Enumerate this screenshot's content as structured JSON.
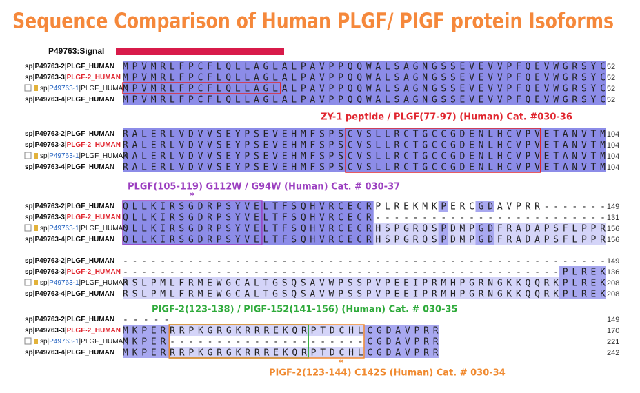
{
  "title": "Sequence Comparison of Human PLGF/ PIGF protein Isoforms",
  "title_color": "#f5883b",
  "signal": {
    "label": "P49763:Signal",
    "color": "#d81b4a"
  },
  "blocks": [
    {
      "rows": [
        {
          "name": [
            "sp|P49763-2|PLGF_HUMAN"
          ],
          "sequence": "MPVMRLFPCFLQLLAGLALPAVPPQQWALSAGNGSSEVEVVPFQEVWGRSYC",
          "end": 52
        },
        {
          "name": [
            "sp|P49763-3|",
            "PLGF-2_HUMAN"
          ],
          "sequence": "MPVMRLFPCFLQLLAGLALPAVPPQQWALSAGNGSSEVEVVPFQEVWGRSYC",
          "end": 52
        },
        {
          "name": [
            "sp|",
            "P49763-1",
            "|PLGF_HUMAN"
          ],
          "sequence": "MPVMRLFPCFLQLLAGLALPAVPPQQWALSAGNGSSEVEVVPFQEVWGRSYC",
          "end": 52
        },
        {
          "name": [
            "sp|P49763-4|PLGF_HUMAN"
          ],
          "sequence": "MPVMRLFPCFLQLLAGLALPAVPPQQWALSAGNGSSEVEVVPFQEVWGRSYC",
          "end": 52
        }
      ]
    },
    {
      "rows": [
        {
          "name": [
            "sp|P49763-2|PLGF_HUMAN"
          ],
          "sequence": "RALERLVDVVSEYPSEVEHMFSPSCVSLLRCTGCCGDENLHCVPVETANVTM",
          "end": 104
        },
        {
          "name": [
            "sp|P49763-3|",
            "PLGF-2_HUMAN"
          ],
          "sequence": "RALERLVDVVSEYPSEVEHMFSPSCVSLLRCTGCCGDENLHCVPVETANVTM",
          "end": 104
        },
        {
          "name": [
            "sp|",
            "P49763-1",
            "|PLGF_HUMAN"
          ],
          "sequence": "RALERLVDVVSEYPSEVEHMFSPSCVSLLRCTGCCGDENLHCVPVETANVTM",
          "end": 104
        },
        {
          "name": [
            "sp|P49763-4|PLGF_HUMAN"
          ],
          "sequence": "RALERLVDVVSEYPSEVEHMFSPSCVSLLRCTGCCGDENLHCVPVETANVTM",
          "end": 104
        }
      ]
    },
    {
      "rows": [
        {
          "name": [
            "sp|P49763-2|PLGF_HUMAN"
          ],
          "sequence": "QLLKIRSGDRPSYVELTFSQHVRCECRPLREKMKPERCGDAVPRR-------",
          "end": 149
        },
        {
          "name": [
            "sp|P49763-3|",
            "PLGF-2_HUMAN"
          ],
          "sequence": "QLLKIRSGDRPSYVELTFSQHVRCECR-------------------------",
          "end": 131
        },
        {
          "name": [
            "sp|",
            "P49763-1",
            "|PLGF_HUMAN"
          ],
          "sequence": "QLLKIRSGDRPSYVELTFSQHVRCECRHSPGRQSPDMPGDFRADAPSFLPPR",
          "end": 156
        },
        {
          "name": [
            "sp|P49763-4|PLGF_HUMAN"
          ],
          "sequence": "QLLKIRSGDRPSYVELTFSQHVRCECRHSPGRQSPDMPGDFRADAPSFLPPR",
          "end": 156
        }
      ]
    },
    {
      "rows": [
        {
          "name": [
            "sp|P49763-2|PLGF_HUMAN"
          ],
          "sequence": "----------------------------------------------------",
          "end": 149
        },
        {
          "name": [
            "sp|P49763-3|",
            "PLGF-2_HUMAN"
          ],
          "sequence": "-----------------------------------------------PLREK",
          "end": 136
        },
        {
          "name": [
            "sp|",
            "P49763-1",
            "|PLGF_HUMAN"
          ],
          "sequence": "RSLPMLFRMEWGCALTGSQSAVWPSSPVPEEIPRMHPGRNGKKQQRKPLREK",
          "end": 208
        },
        {
          "name": [
            "sp|P49763-4|PLGF_HUMAN"
          ],
          "sequence": "RSLPMLFRMEWGCALTGSQSAVWPSSPVPEEIPRMHPGRNGKKQQRKPLREK",
          "end": 208
        }
      ]
    },
    {
      "rows": [
        {
          "name": [
            "sp|P49763-2|PLGF_HUMAN"
          ],
          "sequence": "-----",
          "end": 149
        },
        {
          "name": [
            "sp|P49763-3|",
            "PLGF-2_HUMAN"
          ],
          "sequence": "MKPERRRPKGRGKRRREKQRPTDCHLCGDAVPRR",
          "end": 170
        },
        {
          "name": [
            "sp|",
            "P49763-1",
            "|PLGF_HUMAN"
          ],
          "sequence": "MKPER---------------------CGDAVPRR",
          "end": 221
        },
        {
          "name": [
            "sp|P49763-4|PLGF_HUMAN"
          ],
          "sequence": "MKPERRRPKGRGKRRREKQRPTDCHLCGDAVPRR",
          "end": 242
        }
      ]
    }
  ],
  "annotations": [
    {
      "text": "ZY-1 peptide / PLGF(77-97) (Human) Cat. #030-36",
      "color": "#e0262f"
    },
    {
      "text": "PLGF(105-119) G112W  / G94W  (Human) Cat. # 030-37",
      "color": "#9b3fc0",
      "marker": "*"
    },
    {
      "text": "PIGF-2(123-138) / PIGF-152(141-156)  (Human) Cat. # 030-35",
      "color": "#2eaa3a"
    },
    {
      "text": "PIGF-2(123-144) C142S (Human)  Cat. # 030-34",
      "color": "#f08a30",
      "marker": "*"
    }
  ]
}
